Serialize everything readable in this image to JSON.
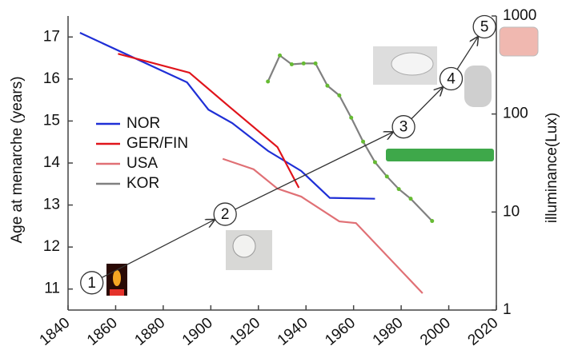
{
  "chart_data": {
    "type": "line",
    "y_label": "Age at menarche (years)",
    "y2_label": "illuminance(Lux)",
    "xlim": [
      1840,
      2020
    ],
    "xticks": [
      1840,
      1860,
      1880,
      1900,
      1920,
      1940,
      1960,
      1980,
      2000,
      2020
    ],
    "ylim": [
      10.5,
      17.5
    ],
    "yticks": [
      11,
      12,
      13,
      14,
      15,
      16,
      17
    ],
    "y2lim": [
      1,
      1000
    ],
    "y2ticks": [
      1,
      10,
      100,
      1000
    ],
    "y2_log": true,
    "series": [
      {
        "name": "NOR",
        "color": "#1f2fd6",
        "x": [
          1845,
          1890,
          1899,
          1909,
          1924,
          1938,
          1950,
          1969
        ],
        "values": [
          17.1,
          15.92,
          15.27,
          14.95,
          14.29,
          13.81,
          13.17,
          13.15
        ]
      },
      {
        "name": "GER/FIN",
        "color": "#e0141b",
        "x": [
          1861,
          1891,
          1908,
          1928,
          1937
        ],
        "values": [
          16.6,
          16.15,
          15.33,
          14.38,
          13.41
        ]
      },
      {
        "name": "USA",
        "color": "#e07075",
        "x": [
          1905,
          1918,
          1928,
          1938,
          1954,
          1961,
          1989
        ],
        "values": [
          14.1,
          13.85,
          13.39,
          13.2,
          12.61,
          12.57,
          10.9
        ]
      },
      {
        "name": "KOR",
        "color": "#808080",
        "marker_color": "#66bb33",
        "x": [
          1924,
          1929,
          1934,
          1939,
          1944,
          1949,
          1954,
          1959,
          1964,
          1969,
          1974,
          1979,
          1984,
          1993
        ],
        "values": [
          15.94,
          16.56,
          16.35,
          16.37,
          16.37,
          15.84,
          15.61,
          15.08,
          14.51,
          14.02,
          13.68,
          13.38,
          13.15,
          12.62
        ]
      }
    ],
    "illuminance_steps": {
      "axis": "y2",
      "color": "#333333",
      "x": [
        1850,
        1906,
        1981,
        2001,
        2015
      ],
      "values": [
        1.9,
        9.5,
        74,
        229,
        776
      ],
      "labels": [
        "1",
        "2",
        "3",
        "4",
        "5"
      ]
    }
  }
}
